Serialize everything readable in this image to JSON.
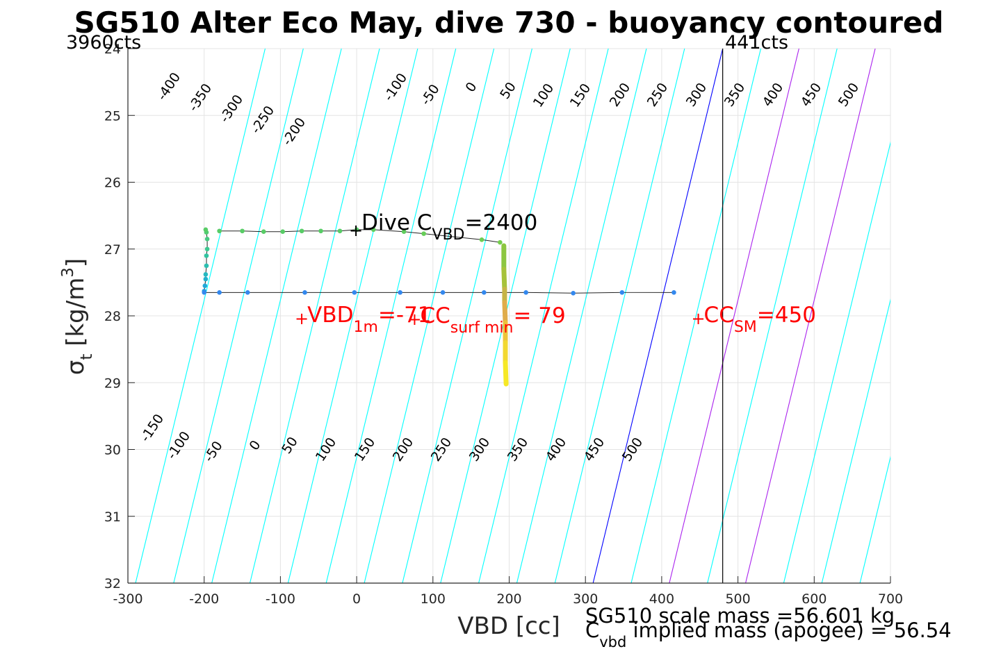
{
  "chart_data": {
    "type": "scatter",
    "title": "SG510 Alter Eco May, dive 730 - buoyancy contoured",
    "xlabel": "VBD [cc]",
    "ylabel": "σ_t [kg/m^3]",
    "xlim": [
      -300,
      700
    ],
    "ylim": [
      24,
      32
    ],
    "y_reversed": true,
    "grid": true,
    "x_ticks": [
      -300,
      -200,
      -100,
      0,
      100,
      200,
      300,
      400,
      500,
      600,
      700
    ],
    "y_ticks": [
      24,
      25,
      26,
      27,
      28,
      29,
      30,
      31,
      32
    ],
    "x_tick_labels": [
      "-300",
      "-200",
      "-100",
      "0",
      "100",
      "200",
      "300",
      "400",
      "500",
      "600",
      "700"
    ],
    "y_tick_labels": [
      "24",
      "25",
      "26",
      "27",
      "28",
      "29",
      "30",
      "31",
      "32"
    ],
    "corner_labels": {
      "left": "3960cts",
      "right": "441cts"
    },
    "reference_line_x": 480,
    "contours": {
      "colors": {
        "cyan": "#00ffff",
        "zero": "#0000ff",
        "key": "#aa22ee"
      },
      "top": {
        "x_at_24": [
          -300,
          -250,
          -200,
          -150,
          -100,
          -50,
          0,
          50,
          100,
          150,
          200,
          250,
          300,
          350,
          400,
          450,
          500,
          550,
          600,
          650
        ],
        "labels": [
          {
            "text": "-400",
            "value": -400
          },
          {
            "text": "-350",
            "value": -350
          },
          {
            "text": "-300",
            "value": -300
          },
          {
            "text": "-250",
            "value": -250
          },
          {
            "text": "-200",
            "value": -200
          },
          {
            "text": "-100",
            "value": -100
          },
          {
            "text": "-50",
            "value": -50
          },
          {
            "text": "0",
            "value": 0
          },
          {
            "text": "50",
            "value": 50
          },
          {
            "text": "100",
            "value": 100
          },
          {
            "text": "150",
            "value": 150
          },
          {
            "text": "200",
            "value": 200
          },
          {
            "text": "250",
            "value": 250
          },
          {
            "text": "300",
            "value": 300
          },
          {
            "text": "350",
            "value": 350
          },
          {
            "text": "400",
            "value": 400
          },
          {
            "text": "450",
            "value": 450
          },
          {
            "text": "500",
            "value": 500
          }
        ]
      },
      "bottom": {
        "x_at_32": [
          -290,
          -240,
          -190,
          -140,
          -90,
          -40,
          10,
          60,
          110,
          160,
          210,
          260,
          310,
          360,
          410,
          460,
          510,
          560,
          610,
          660
        ],
        "labels": [
          {
            "text": "-150",
            "value": -150
          },
          {
            "text": "-100",
            "value": -100
          },
          {
            "text": "-50",
            "value": -50
          },
          {
            "text": "0",
            "value": 0
          },
          {
            "text": "50",
            "value": 50
          },
          {
            "text": "100",
            "value": 100
          },
          {
            "text": "150",
            "value": 150
          },
          {
            "text": "200",
            "value": 200
          },
          {
            "text": "250",
            "value": 250
          },
          {
            "text": "300",
            "value": 300
          },
          {
            "text": "350",
            "value": 350
          },
          {
            "text": "400",
            "value": 400
          },
          {
            "text": "450",
            "value": 450
          },
          {
            "text": "500",
            "value": 500
          }
        ]
      }
    },
    "series": [
      {
        "x": [
          -200,
          -199,
          -198,
          -198,
          -197,
          -197,
          -196,
          -196,
          -197,
          -198
        ],
        "y": [
          27.63,
          27.55,
          27.45,
          27.38,
          27.25,
          27.1,
          27.0,
          26.85,
          26.75,
          26.71
        ],
        "colors": [
          "#1fa0e0",
          "#20a8d8",
          "#22b0cc",
          "#26b8c0",
          "#2abfb0",
          "#30c4a0",
          "#3cc890",
          "#46ca80",
          "#50cc70",
          "#58cc66"
        ]
      },
      {
        "x": [
          -180,
          -150,
          -122,
          -97,
          -72,
          -47,
          -22,
          0,
          22,
          62,
          88,
          164,
          188
        ],
        "y": [
          26.73,
          26.73,
          26.74,
          26.74,
          26.73,
          26.73,
          26.73,
          26.71,
          26.71,
          26.74,
          26.77,
          26.86,
          26.9
        ],
        "colors": [
          "#58cc66",
          "#58cc66",
          "#58cc66",
          "#58cc66",
          "#58cc66",
          "#58cc66",
          "#58cc66",
          "#58cc66",
          "#60cd5e",
          "#60cd5e",
          "#66ce58",
          "#6cce52",
          "#74ce4c"
        ]
      },
      {
        "x": [
          -200,
          -180,
          -143,
          -68,
          -3,
          57,
          113,
          167,
          222,
          284,
          348,
          416
        ],
        "y": [
          27.65,
          27.65,
          27.65,
          27.65,
          27.65,
          27.65,
          27.65,
          27.65,
          27.65,
          27.66,
          27.65,
          27.65
        ],
        "colors": [
          "#3388ee",
          "#3388ee",
          "#3388ee",
          "#3388ee",
          "#3388ee",
          "#3388ee",
          "#3388ee",
          "#3388ee",
          "#3388ee",
          "#3388ee",
          "#3388ee",
          "#3388ee"
        ]
      }
    ],
    "dive_track": {
      "x": [
        193,
        193,
        194,
        194,
        195,
        195,
        195,
        196
      ],
      "y": [
        26.95,
        27.3,
        27.6,
        27.8,
        28.1,
        28.4,
        28.7,
        29.02
      ],
      "colors": [
        "#8cc640",
        "#a6c23a",
        "#c6b446",
        "#e0ac4a",
        "#ecc43a",
        "#f2d830",
        "#f6e826",
        "#f8f020"
      ]
    },
    "annotations": [
      {
        "x": -1,
        "y": 26.72,
        "text": "Dive C",
        "sub": "VBD",
        "tail": "=2400",
        "color": "#000000"
      },
      {
        "x": -72,
        "y": 28.04,
        "text": "VBD",
        "sub": "1m",
        "tail": "=-71",
        "color": "#ff0000"
      },
      {
        "x": 76,
        "y": 28.05,
        "text": "CC",
        "sub": "surf min",
        "tail": "= 79",
        "color": "#ff0000"
      },
      {
        "x": 448,
        "y": 28.04,
        "text": "CC",
        "sub": "SM",
        "tail": "=450",
        "color": "#ff0000"
      }
    ],
    "footer": {
      "line1": "SG510 scale mass =56.601 kg",
      "line2_main": "C",
      "line2_sub": "vbd",
      "line2_tail": " implied mass (apogee) = 56.54"
    }
  }
}
